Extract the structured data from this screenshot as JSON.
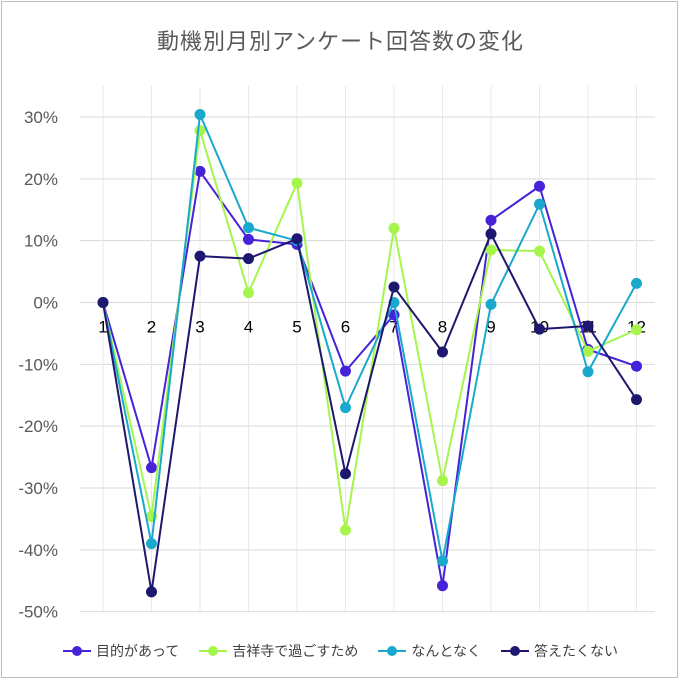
{
  "chart_data": {
    "type": "line",
    "title": "動機別月別アンケート回答数の変化",
    "xlabel": "",
    "ylabel": "",
    "x": [
      "1",
      "2",
      "3",
      "4",
      "5",
      "6",
      "7",
      "8",
      "9",
      "10",
      "11",
      "12"
    ],
    "yticks": [
      "30%",
      "20%",
      "10%",
      "0%",
      "-10%",
      "-20%",
      "-30%",
      "-40%",
      "-50%"
    ],
    "ylim": [
      -50,
      30
    ],
    "grid": true,
    "legend_position": "bottom",
    "series": [
      {
        "name": "目的があって",
        "color": "#4622d8",
        "values": [
          0,
          -26.7,
          21.2,
          10.2,
          9.4,
          -11.1,
          -2.0,
          -45.8,
          13.3,
          18.8,
          -7.6,
          -10.3
        ]
      },
      {
        "name": "吉祥寺で過ごすため",
        "color": "#a6f54d",
        "values": [
          0,
          -34.6,
          27.8,
          1.6,
          19.3,
          -36.8,
          12.0,
          -28.8,
          8.5,
          8.3,
          -7.9,
          -4.4
        ]
      },
      {
        "name": "なんとなく",
        "color": "#1aa9cc",
        "values": [
          0,
          -39.0,
          30.4,
          12.1,
          10.0,
          -17.0,
          0.0,
          -41.8,
          -0.3,
          15.9,
          -11.2,
          3.1
        ]
      },
      {
        "name": "答えたくない",
        "color": "#1e1770",
        "values": [
          0,
          -46.8,
          7.5,
          7.1,
          10.3,
          -27.7,
          2.5,
          -8.0,
          11.1,
          -4.3,
          -3.8,
          -15.7
        ]
      }
    ]
  }
}
